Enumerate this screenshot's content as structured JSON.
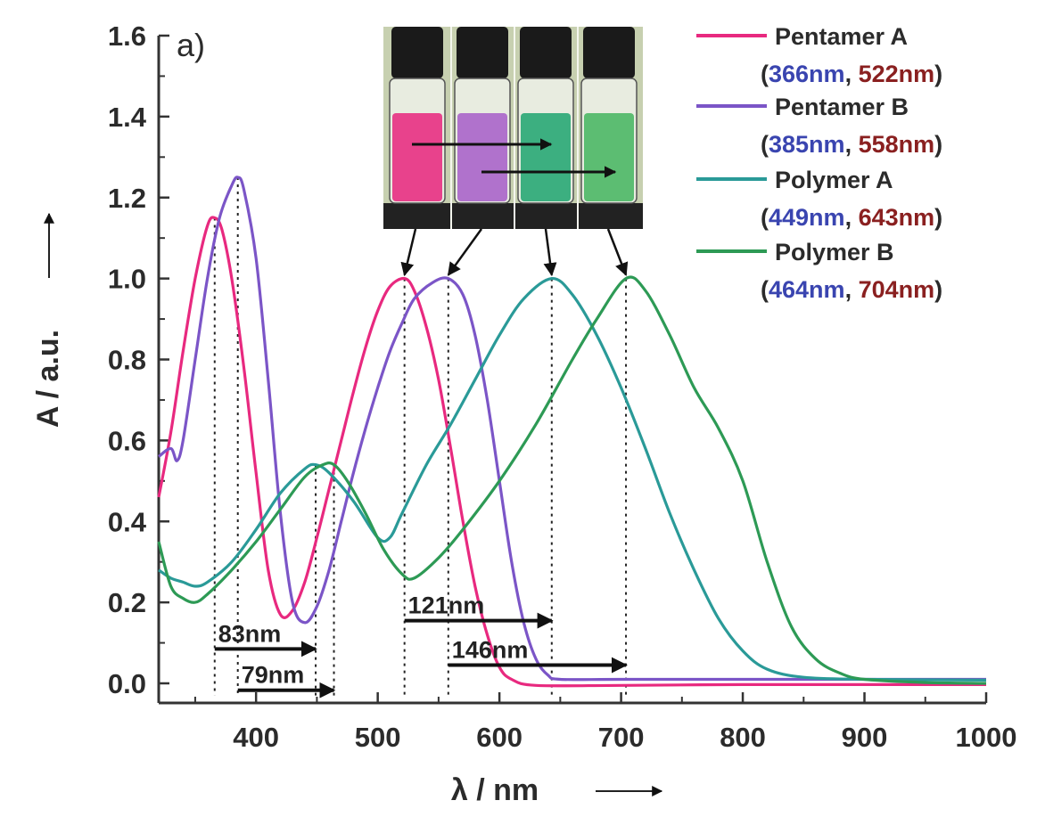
{
  "chart_data": {
    "type": "line",
    "panel_label": "a)",
    "xlabel": "λ / nm",
    "ylabel": "A / a.u.",
    "xlim": [
      320,
      1000
    ],
    "ylim": [
      -0.05,
      1.6
    ],
    "x_ticks": [
      400,
      500,
      600,
      700,
      800,
      900,
      1000
    ],
    "y_ticks": [
      "0.0",
      "0.2",
      "0.4",
      "0.6",
      "0.8",
      "1.0",
      "1.2",
      "1.4",
      "1.6"
    ],
    "grid": false,
    "legend_position": "top-right",
    "series": [
      {
        "name": "Pentamer A",
        "peaks": [
          "366nm",
          "522nm"
        ],
        "color": "#e8297f",
        "points": [
          [
            320,
            0.46
          ],
          [
            330,
            0.62
          ],
          [
            340,
            0.82
          ],
          [
            350,
            1.0
          ],
          [
            360,
            1.13
          ],
          [
            366,
            1.15
          ],
          [
            372,
            1.12
          ],
          [
            380,
            1.0
          ],
          [
            390,
            0.78
          ],
          [
            400,
            0.52
          ],
          [
            410,
            0.28
          ],
          [
            420,
            0.17
          ],
          [
            430,
            0.18
          ],
          [
            440,
            0.25
          ],
          [
            450,
            0.36
          ],
          [
            460,
            0.48
          ],
          [
            470,
            0.6
          ],
          [
            480,
            0.72
          ],
          [
            490,
            0.83
          ],
          [
            500,
            0.92
          ],
          [
            510,
            0.98
          ],
          [
            522,
            1.0
          ],
          [
            530,
            0.97
          ],
          [
            540,
            0.88
          ],
          [
            550,
            0.75
          ],
          [
            560,
            0.58
          ],
          [
            570,
            0.4
          ],
          [
            580,
            0.24
          ],
          [
            590,
            0.12
          ],
          [
            600,
            0.04
          ],
          [
            610,
            0.01
          ],
          [
            630,
            -0.005
          ],
          [
            700,
            -0.005
          ],
          [
            800,
            -0.003
          ],
          [
            900,
            -0.003
          ],
          [
            1000,
            -0.003
          ]
        ]
      },
      {
        "name": "Pentamer B",
        "peaks": [
          "385nm",
          "558nm"
        ],
        "color": "#7b55c7",
        "points": [
          [
            320,
            0.56
          ],
          [
            330,
            0.58
          ],
          [
            335,
            0.55
          ],
          [
            340,
            0.6
          ],
          [
            350,
            0.8
          ],
          [
            360,
            1.0
          ],
          [
            370,
            1.15
          ],
          [
            380,
            1.23
          ],
          [
            385,
            1.25
          ],
          [
            390,
            1.22
          ],
          [
            400,
            1.05
          ],
          [
            410,
            0.75
          ],
          [
            420,
            0.42
          ],
          [
            430,
            0.2
          ],
          [
            440,
            0.15
          ],
          [
            450,
            0.19
          ],
          [
            460,
            0.28
          ],
          [
            470,
            0.4
          ],
          [
            480,
            0.52
          ],
          [
            490,
            0.63
          ],
          [
            500,
            0.73
          ],
          [
            510,
            0.82
          ],
          [
            520,
            0.89
          ],
          [
            530,
            0.95
          ],
          [
            545,
            0.99
          ],
          [
            558,
            1.0
          ],
          [
            570,
            0.96
          ],
          [
            580,
            0.86
          ],
          [
            590,
            0.7
          ],
          [
            600,
            0.5
          ],
          [
            610,
            0.3
          ],
          [
            620,
            0.15
          ],
          [
            630,
            0.06
          ],
          [
            640,
            0.02
          ],
          [
            650,
            0.01
          ],
          [
            700,
            0.01
          ],
          [
            800,
            0.01
          ],
          [
            900,
            0.01
          ],
          [
            1000,
            0.01
          ]
        ]
      },
      {
        "name": "Polymer A",
        "peaks": [
          "449nm",
          "643nm"
        ],
        "color": "#2a9a98",
        "points": [
          [
            320,
            0.28
          ],
          [
            330,
            0.26
          ],
          [
            340,
            0.25
          ],
          [
            350,
            0.24
          ],
          [
            360,
            0.25
          ],
          [
            380,
            0.3
          ],
          [
            400,
            0.38
          ],
          [
            420,
            0.47
          ],
          [
            440,
            0.53
          ],
          [
            449,
            0.54
          ],
          [
            460,
            0.52
          ],
          [
            480,
            0.45
          ],
          [
            500,
            0.36
          ],
          [
            510,
            0.36
          ],
          [
            520,
            0.42
          ],
          [
            540,
            0.54
          ],
          [
            560,
            0.64
          ],
          [
            580,
            0.75
          ],
          [
            600,
            0.86
          ],
          [
            620,
            0.95
          ],
          [
            643,
            1.0
          ],
          [
            660,
            0.96
          ],
          [
            680,
            0.86
          ],
          [
            700,
            0.73
          ],
          [
            720,
            0.58
          ],
          [
            740,
            0.42
          ],
          [
            760,
            0.28
          ],
          [
            780,
            0.16
          ],
          [
            800,
            0.08
          ],
          [
            820,
            0.035
          ],
          [
            850,
            0.015
          ],
          [
            900,
            0.01
          ],
          [
            1000,
            0.008
          ]
        ]
      },
      {
        "name": "Polymer B",
        "peaks": [
          "464nm",
          "704nm"
        ],
        "color": "#2d9a55",
        "points": [
          [
            320,
            0.35
          ],
          [
            330,
            0.24
          ],
          [
            340,
            0.21
          ],
          [
            350,
            0.2
          ],
          [
            360,
            0.22
          ],
          [
            380,
            0.28
          ],
          [
            400,
            0.35
          ],
          [
            420,
            0.43
          ],
          [
            440,
            0.51
          ],
          [
            455,
            0.54
          ],
          [
            464,
            0.54
          ],
          [
            475,
            0.5
          ],
          [
            490,
            0.42
          ],
          [
            505,
            0.33
          ],
          [
            520,
            0.27
          ],
          [
            530,
            0.26
          ],
          [
            550,
            0.31
          ],
          [
            570,
            0.38
          ],
          [
            600,
            0.5
          ],
          [
            630,
            0.64
          ],
          [
            660,
            0.8
          ],
          [
            680,
            0.9
          ],
          [
            704,
            1.0
          ],
          [
            720,
            0.97
          ],
          [
            740,
            0.86
          ],
          [
            760,
            0.73
          ],
          [
            780,
            0.63
          ],
          [
            800,
            0.5
          ],
          [
            820,
            0.3
          ],
          [
            840,
            0.14
          ],
          [
            860,
            0.06
          ],
          [
            880,
            0.025
          ],
          [
            900,
            0.01
          ],
          [
            950,
            0.002
          ],
          [
            1000,
            0.0
          ]
        ]
      }
    ],
    "dotted_lines_x": [
      366,
      385,
      449,
      464,
      522,
      558,
      643,
      704
    ],
    "annotations": [
      {
        "text": "83nm",
        "from": 366,
        "to": 449,
        "y": 0.085
      },
      {
        "text": "79nm",
        "from": 385,
        "to": 464,
        "y": -0.017
      },
      {
        "text": "121nm",
        "from": 522,
        "to": 643,
        "y": 0.155
      },
      {
        "text": "146nm",
        "from": 558,
        "to": 704,
        "y": 0.045
      }
    ]
  },
  "inset": {
    "vial_colors": [
      "#e8428c",
      "#b072cc",
      "#3caf80",
      "#5cbd72"
    ],
    "background": "#c7d0b0"
  }
}
